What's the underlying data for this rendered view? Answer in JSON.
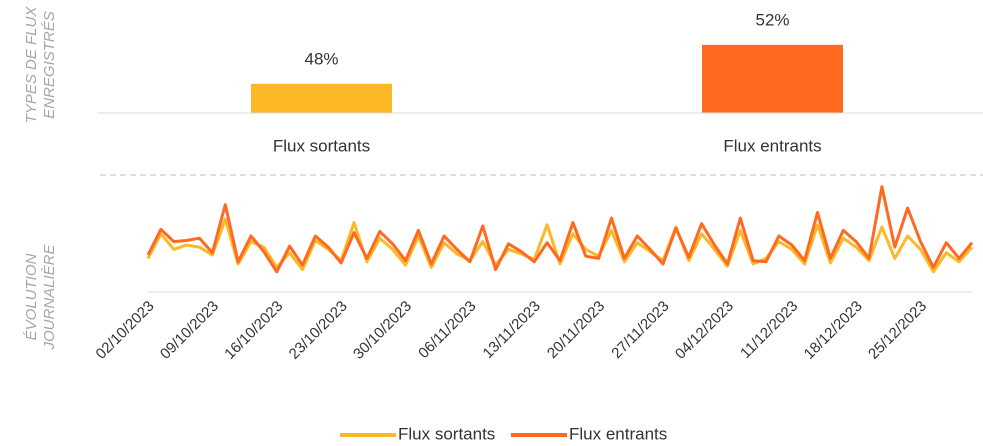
{
  "chart_data": [
    {
      "type": "bar",
      "ylabel": [
        "TYPES DE FLUX",
        "ENREGISTRÉS"
      ],
      "categories": [
        "Flux sortants",
        "Flux entrants"
      ],
      "values": [
        48,
        52
      ],
      "value_labels": [
        "48%",
        "52%"
      ],
      "colors": [
        "#fdb827",
        "#ff6a21"
      ],
      "ylim": [
        45,
        52.5
      ]
    },
    {
      "type": "line",
      "ylabel": [
        "ÉVOLUTION",
        "JOURNALIÈRE"
      ],
      "categories": [
        "02/10/2023",
        null,
        null,
        null,
        null,
        "09/10/2023",
        null,
        null,
        null,
        null,
        "16/10/2023",
        null,
        null,
        null,
        null,
        "23/10/2023",
        null,
        null,
        null,
        null,
        "30/10/2023",
        null,
        null,
        null,
        null,
        "06/11/2023",
        null,
        null,
        null,
        null,
        "13/11/2023",
        null,
        null,
        null,
        null,
        "20/11/2023",
        null,
        null,
        null,
        null,
        "27/11/2023",
        null,
        null,
        null,
        null,
        "04/12/2023",
        null,
        null,
        null,
        null,
        "11/12/2023",
        null,
        null,
        null,
        null,
        "18/12/2023",
        null,
        null,
        null,
        null,
        "25/12/2023",
        null,
        null,
        null,
        null
      ],
      "series": [
        {
          "name": "Flux sortants",
          "color": "#fdb827",
          "values": [
            30,
            52,
            38,
            42,
            40,
            33,
            65,
            25,
            45,
            40,
            22,
            35,
            20,
            46,
            38,
            28,
            62,
            27,
            48,
            38,
            24,
            50,
            22,
            44,
            34,
            28,
            45,
            24,
            38,
            34,
            29,
            60,
            25,
            52,
            38,
            32,
            55,
            27,
            44,
            36,
            28,
            58,
            28,
            52,
            38,
            23,
            55,
            25,
            30,
            45,
            38,
            25,
            60,
            26,
            48,
            40,
            28,
            58,
            30,
            50,
            38,
            18,
            35,
            27,
            40
          ]
        },
        {
          "name": "Flux entrants",
          "color": "#ff6a21",
          "values": [
            33,
            56,
            45,
            46,
            48,
            35,
            78,
            27,
            50,
            36,
            18,
            41,
            24,
            50,
            40,
            26,
            53,
            30,
            54,
            43,
            28,
            55,
            25,
            50,
            38,
            27,
            59,
            20,
            43,
            36,
            27,
            44,
            28,
            62,
            32,
            30,
            66,
            30,
            50,
            38,
            25,
            57,
            31,
            61,
            42,
            25,
            66,
            28,
            27,
            50,
            42,
            28,
            71,
            30,
            55,
            45,
            30,
            94,
            40,
            75,
            45,
            22,
            44,
            30,
            44
          ]
        }
      ],
      "ylim": [
        0,
        100
      ],
      "legend": "bottom"
    }
  ]
}
